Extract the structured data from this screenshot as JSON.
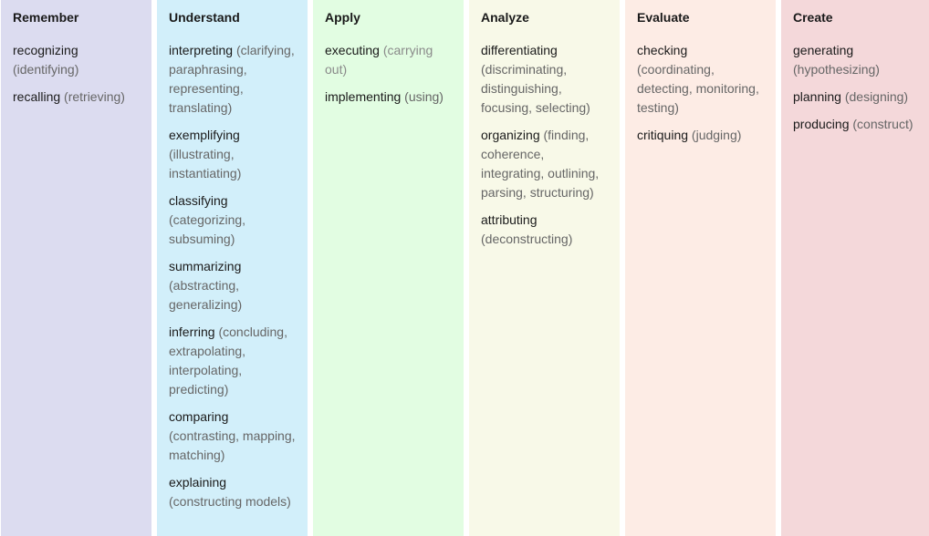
{
  "columns": [
    {
      "title": "Remember",
      "color": "#dcdcf0",
      "items": [
        {
          "term": "recognizing",
          "synonyms": "(identifying)"
        },
        {
          "term": "recalling",
          "synonyms": "(retrieving)"
        }
      ]
    },
    {
      "title": "Understand",
      "color": "#d2effa",
      "items": [
        {
          "term": "interpreting",
          "synonyms": "(clarifying, paraphrasing, representing, translating)"
        },
        {
          "term": "exemplifying",
          "synonyms": "(illustrating, instantiating)"
        },
        {
          "term": "classifying",
          "synonyms": "(categorizing, subsuming)"
        },
        {
          "term": "summarizing",
          "synonyms": "(abstracting, generalizing)"
        },
        {
          "term": "inferring",
          "synonyms": "(concluding, extrapolating, interpolating, predicting)"
        },
        {
          "term": "comparing",
          "synonyms": "(contrasting, mapping, matching)"
        },
        {
          "term": "explaining",
          "synonyms": "(constructing models)"
        }
      ]
    },
    {
      "title": "Apply",
      "color": "#e2fde2",
      "items": [
        {
          "term": "executing",
          "synonyms": "(carrying out)"
        },
        {
          "term": "implementing",
          "synonyms": "(using)"
        }
      ]
    },
    {
      "title": "Analyze",
      "color": "#f8f9e8",
      "items": [
        {
          "term": "differentiating",
          "synonyms": "(discriminating, distinguishing, focusing, selecting)"
        },
        {
          "term": "organizing",
          "synonyms": "(finding, coherence, integrating, outlining, parsing, structuring)"
        },
        {
          "term": "attributing",
          "synonyms": "(deconstructing)"
        }
      ]
    },
    {
      "title": "Evaluate",
      "color": "#fdece5",
      "items": [
        {
          "term": "checking",
          "synonyms": "(coordinating, detecting, monitoring, testing)"
        },
        {
          "term": "critiquing",
          "synonyms": "(judging)"
        }
      ]
    },
    {
      "title": "Create",
      "color": "#f4d8da",
      "items": [
        {
          "term": "generating",
          "synonyms": "(hypothesizing)"
        },
        {
          "term": "planning",
          "synonyms": "(designing)"
        },
        {
          "term": "producing",
          "synonyms": "(construct)"
        }
      ]
    }
  ]
}
